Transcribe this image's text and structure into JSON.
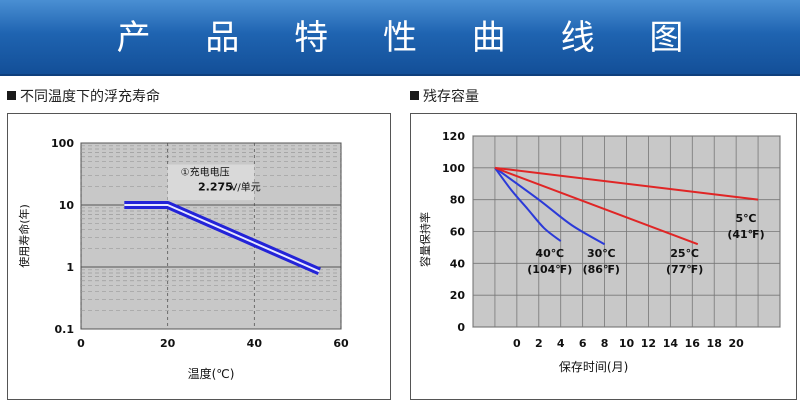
{
  "page": {
    "title": "产 品 特 性 曲 线 图"
  },
  "sections": {
    "left": "不同温度下的浮充寿命",
    "right": "残存容量"
  },
  "colors": {
    "banner": "#1f64b1",
    "plot_bg": "#c8c8c8",
    "float_line": "#2323d8",
    "line_40c": "#2b3ad8",
    "line_30c": "#2b3ad8",
    "line_25c": "#e02525",
    "line_5c": "#e02525"
  },
  "chart_data": [
    {
      "type": "line",
      "ylabel": "使用寿命(年)",
      "xlabel": "温度(℃)",
      "x_scale": "linear",
      "y_scale": "log",
      "xlim": [
        0,
        60
      ],
      "ylim": [
        0.1,
        100
      ],
      "x_ticks": [
        "0",
        "20",
        "40",
        "60"
      ],
      "y_ticks": [
        "0.1",
        "1",
        "10",
        "100"
      ],
      "grid": true,
      "annotation": {
        "line1": "①充电电压",
        "value": "2.275",
        "unit": "V/单元"
      },
      "series": [
        {
          "x": [
            10,
            15,
            20,
            55
          ],
          "y": [
            10,
            10,
            10,
            0.85
          ]
        }
      ]
    },
    {
      "type": "line",
      "ylabel": "容量保持率",
      "xlabel": "保存时间(月)",
      "xlim": [
        -4,
        24
      ],
      "ylim": [
        0,
        120
      ],
      "x_ticks": [
        "0",
        "2",
        "4",
        "6",
        "8",
        "10",
        "12",
        "14",
        "16",
        "18",
        "20"
      ],
      "y_ticks": [
        "0",
        "20",
        "40",
        "60",
        "80",
        "100",
        "120"
      ],
      "grid": true,
      "series": [
        {
          "label_c": "40℃",
          "label_f": "(104℉)",
          "x": [
            -2,
            -0.5,
            1,
            2.5,
            4
          ],
          "y": [
            100,
            86,
            74,
            62,
            54
          ]
        },
        {
          "label_c": "30℃",
          "label_f": "(86℉)",
          "x": [
            -2,
            2,
            5,
            8
          ],
          "y": [
            100,
            80,
            64,
            52
          ]
        },
        {
          "label_c": "25℃",
          "label_f": "(77℉)",
          "x": [
            -2,
            16.5
          ],
          "y": [
            100,
            52
          ]
        },
        {
          "label_c": "5℃",
          "label_f": "(41℉)",
          "x": [
            -2,
            22
          ],
          "y": [
            100,
            80
          ]
        }
      ]
    }
  ]
}
